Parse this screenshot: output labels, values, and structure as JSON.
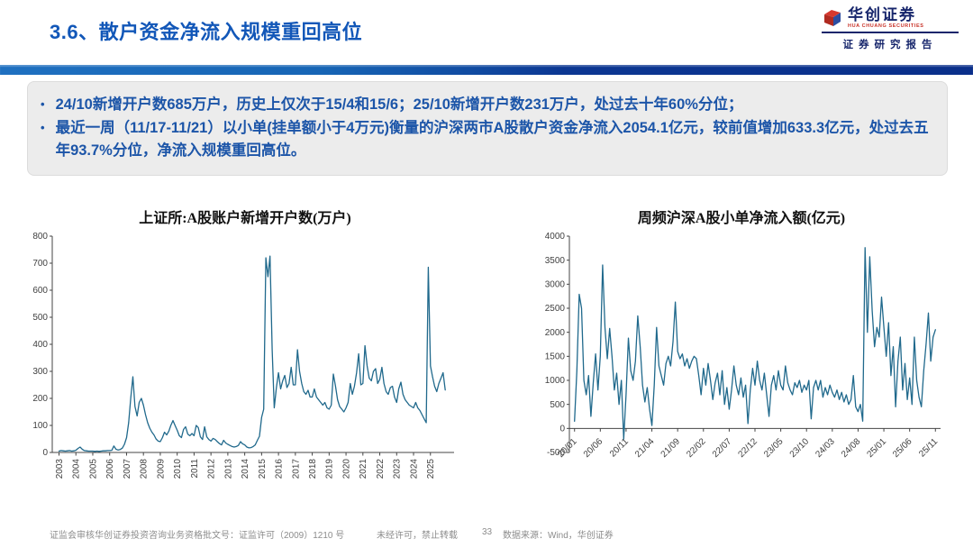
{
  "header": {
    "title": "3.6、散户资金净流入规模重回高位"
  },
  "logo": {
    "brand_cn": "华创证券",
    "brand_en": "HUA CHUANG SECURITIES",
    "tagline": "证券研究报告"
  },
  "summary": {
    "bullet_char": "•",
    "items": [
      "24/10新增开户数685万户，历史上仅次于15/4和15/6；25/10新增开户数231万户，处过去十年60%分位；",
      "最近一周（11/17-11/21）以小单(挂单额小于4万元)衡量的沪深两市A股散户资金净流入2054.1亿元，较前值增加633.3亿元，处过去五年93.7%分位，净流入规模重回高位。"
    ]
  },
  "footer": {
    "license": "证监会审核华创证券投资咨询业务资格批文号：证监许可（2009）1210 号",
    "notice": "未经许可，禁止转载",
    "page": "33",
    "source": "数据来源：Wind，华创证券"
  },
  "colors": {
    "accent_blue": "#1257B8",
    "bullet_text": "#1C55A8",
    "line_color": "#20698C",
    "axis_color": "#444444"
  },
  "chart_data": [
    {
      "type": "line",
      "title": "上证所:A股账户新增开户数(万户)",
      "ylabel": "万户",
      "ylim": [
        0,
        800
      ],
      "ytick_step": 100,
      "xlim": [
        2002.6,
        2026.4
      ],
      "x_range": [
        2003.0,
        2025.875
      ],
      "grid": false,
      "legend": "none",
      "xticks": {
        "positions": [
          2003,
          2004,
          2005,
          2006,
          2007,
          2008,
          2009,
          2010,
          2011,
          2012,
          2013,
          2014,
          2015,
          2016,
          2017,
          2018,
          2019,
          2020,
          2021,
          2022,
          2023,
          2024,
          2025
        ],
        "labels": [
          "2003",
          "2004",
          "2005",
          "2006",
          "2007",
          "2008",
          "2009",
          "2010",
          "2011",
          "2012",
          "2013",
          "2014",
          "2015",
          "2016",
          "2017",
          "2018",
          "2019",
          "2020",
          "2021",
          "2022",
          "2023",
          "2024",
          "2025"
        ],
        "rotation": -90
      },
      "values": [
        5,
        7,
        6,
        5,
        6,
        7,
        5,
        6,
        8,
        15,
        20,
        12,
        7,
        6,
        5,
        5,
        5,
        4,
        5,
        4,
        5,
        6,
        6,
        7,
        7,
        8,
        24,
        12,
        9,
        11,
        16,
        30,
        55,
        110,
        200,
        280,
        170,
        135,
        185,
        200,
        175,
        140,
        110,
        90,
        75,
        65,
        50,
        42,
        40,
        55,
        75,
        65,
        78,
        100,
        118,
        100,
        82,
        62,
        55,
        85,
        95,
        68,
        62,
        70,
        62,
        100,
        92,
        58,
        48,
        95,
        58,
        48,
        42,
        52,
        48,
        40,
        33,
        28,
        45,
        35,
        30,
        26,
        22,
        20,
        22,
        26,
        40,
        32,
        28,
        20,
        17,
        18,
        22,
        28,
        45,
        60,
        130,
        160,
        720,
        650,
        726,
        380,
        165,
        240,
        295,
        235,
        265,
        285,
        240,
        255,
        315,
        250,
        250,
        380,
        300,
        255,
        225,
        215,
        230,
        205,
        205,
        235,
        205,
        195,
        185,
        175,
        185,
        165,
        160,
        175,
        290,
        245,
        195,
        170,
        160,
        150,
        165,
        185,
        255,
        215,
        245,
        295,
        365,
        250,
        255,
        395,
        320,
        275,
        265,
        300,
        310,
        255,
        270,
        315,
        255,
        225,
        215,
        240,
        245,
        205,
        185,
        235,
        260,
        215,
        195,
        185,
        175,
        170,
        165,
        185,
        165,
        155,
        140,
        125,
        110,
        685,
        320,
        280,
        245,
        225,
        255,
        275,
        295,
        231
      ]
    },
    {
      "type": "line",
      "title": "周频沪深A股小单净流入额(亿元)",
      "ylabel": "亿元",
      "ylim": [
        -500,
        4000
      ],
      "ytick_step": 500,
      "xlim": [
        -1,
        71
      ],
      "x_range": [
        0,
        70
      ],
      "grid": false,
      "legend": "none",
      "xticks": {
        "positions": [
          0,
          5,
          10,
          15,
          20,
          25,
          30,
          35,
          40,
          45,
          50,
          55,
          60,
          65,
          70
        ],
        "labels": [
          "20/01",
          "20/06",
          "20/11",
          "21/04",
          "21/09",
          "22/02",
          "22/07",
          "22/12",
          "23/05",
          "23/10",
          "24/03",
          "24/08",
          "25/01",
          "25/06",
          "25/11"
        ],
        "rotation": -45
      },
      "values": [
        150,
        1200,
        2790,
        2500,
        1000,
        700,
        1100,
        250,
        950,
        1550,
        800,
        1500,
        3400,
        2100,
        1450,
        2080,
        1500,
        800,
        1150,
        500,
        1000,
        -220,
        700,
        1880,
        1200,
        1000,
        1400,
        2340,
        1700,
        900,
        550,
        850,
        400,
        60,
        900,
        2100,
        1300,
        1100,
        900,
        1350,
        1500,
        1300,
        1800,
        2630,
        1600,
        1450,
        1550,
        1300,
        1450,
        1250,
        1400,
        1500,
        1450,
        1100,
        700,
        1250,
        900,
        1350,
        1000,
        600,
        950,
        1150,
        700,
        1200,
        500,
        850,
        400,
        800,
        1300,
        900,
        700,
        1050,
        650,
        900,
        100,
        800,
        1250,
        900,
        1400,
        1000,
        800,
        1150,
        700,
        250,
        900,
        1100,
        800,
        1200,
        900,
        800,
        1300,
        950,
        800,
        700,
        950,
        850,
        1000,
        750,
        900,
        800,
        1000,
        200,
        850,
        1000,
        800,
        1000,
        650,
        850,
        700,
        900,
        750,
        650,
        800,
        600,
        750,
        550,
        700,
        500,
        600,
        1100,
        450,
        350,
        500,
        150,
        3760,
        2000,
        3570,
        2450,
        1700,
        2100,
        1900,
        2730,
        2100,
        1500,
        2200,
        1100,
        1700,
        450,
        1400,
        1900,
        800,
        1350,
        600,
        1050,
        500,
        1900,
        1000,
        650,
        450,
        1200,
        1750,
        2400,
        1400,
        1900,
        2054.1
      ]
    }
  ]
}
